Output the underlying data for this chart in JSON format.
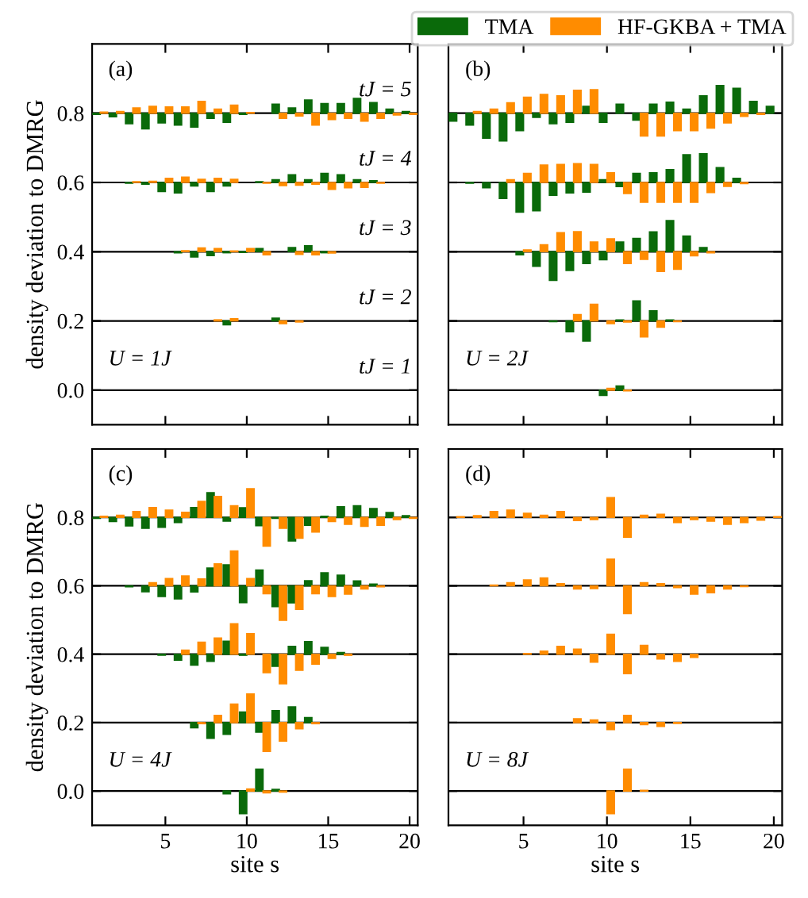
{
  "chart_data": [
    {
      "type": "bar",
      "ylabel": "density deviation to DMRG",
      "legend": "top right",
      "tick_labels": "y",
      "xlim": [
        0.5,
        20.5
      ],
      "xticks": [
        5,
        10,
        15,
        20
      ],
      "ylim": [
        -0.1,
        1.0
      ],
      "yticks": [
        {
          "value": 0.0,
          "label": "0.0"
        },
        0.2,
        0.4,
        0.6,
        0.8
      ],
      "ref_lines": [
        {
          "axis": "y",
          "value": 0.0,
          "color": "#000000"
        },
        {
          "axis": "y",
          "value": 0.2,
          "color": "#000000"
        },
        {
          "axis": "y",
          "value": 0.4,
          "color": "#000000"
        },
        {
          "axis": "y",
          "value": 0.6,
          "color": "#000000"
        },
        {
          "axis": "y",
          "value": 0.8,
          "color": "#000000"
        }
      ],
      "annotations": [
        "(a)",
        "tJ = 5",
        "tJ = 4",
        "tJ = 3",
        "tJ = 2",
        "tJ = 1",
        "U = 1J"
      ],
      "x": [
        1,
        2,
        3,
        4,
        5,
        6,
        7,
        8,
        9,
        10,
        11,
        12,
        13,
        14,
        15,
        16,
        17,
        18,
        19,
        20
      ],
      "series": [
        {
          "name": "TMA",
          "color": "#0a6a0a",
          "base": [
            null,
            null,
            null,
            null,
            null,
            null,
            null,
            null,
            0.2,
            null,
            null,
            0.2,
            null,
            null,
            null,
            null,
            null,
            null,
            null,
            null
          ],
          "values": [
            null,
            null,
            null,
            null,
            null,
            null,
            null,
            null,
            -0.011,
            null,
            null,
            0.008,
            null,
            null,
            null,
            null,
            null,
            null,
            null,
            null
          ]
        },
        {
          "color": "#0a6a0a",
          "base": [
            null,
            null,
            null,
            null,
            null,
            0.4,
            0.4,
            0.4,
            0.4,
            0.4,
            0.4,
            null,
            0.4,
            0.4,
            0.4,
            null,
            null,
            null,
            null,
            null
          ],
          "values": [
            null,
            null,
            null,
            null,
            null,
            -0.003,
            -0.015,
            -0.011,
            -0.003,
            -0.002,
            0.009,
            null,
            0.012,
            0.017,
            -0.003,
            null,
            null,
            null,
            null,
            null
          ]
        },
        {
          "color": "#0a6a0a",
          "base": [
            null,
            null,
            0.6,
            0.6,
            0.6,
            0.6,
            0.6,
            0.6,
            0.6,
            null,
            0.6,
            0.6,
            0.6,
            0.6,
            0.6,
            0.6,
            0.6,
            0.6,
            null,
            null
          ],
          "values": [
            null,
            null,
            -0.002,
            -0.005,
            -0.026,
            -0.03,
            -0.01,
            -0.026,
            -0.01,
            null,
            0.002,
            0.008,
            0.022,
            0.008,
            0.026,
            0.022,
            0.008,
            0.005,
            null,
            null
          ]
        },
        {
          "color": "#0a6a0a",
          "base": [
            0.8,
            0.8,
            0.8,
            0.8,
            0.8,
            0.8,
            0.8,
            0.8,
            0.8,
            0.8,
            null,
            0.8,
            0.8,
            0.8,
            0.8,
            0.8,
            0.8,
            0.8,
            0.8,
            0.8
          ],
          "values": [
            -0.003,
            -0.01,
            -0.03,
            -0.045,
            -0.028,
            -0.034,
            -0.04,
            -0.015,
            -0.026,
            -0.003,
            null,
            0.026,
            0.015,
            0.038,
            0.028,
            0.028,
            0.043,
            0.031,
            0.012,
            0.005
          ]
        },
        {
          "name": "HF-GKBA + TMA",
          "color": "#ff8c00",
          "base": [
            null,
            null,
            null,
            null,
            null,
            null,
            null,
            0.2,
            0.2,
            null,
            null,
            0.2,
            0.2,
            null,
            null,
            null,
            null,
            null,
            null,
            null
          ],
          "values": [
            null,
            null,
            null,
            null,
            null,
            null,
            null,
            0.003,
            0.006,
            null,
            null,
            -0.008,
            -0.003,
            null,
            null,
            null,
            null,
            null,
            null,
            null
          ]
        },
        {
          "color": "#ff8c00",
          "base": [
            null,
            null,
            null,
            null,
            null,
            0.4,
            0.4,
            0.4,
            0.4,
            0.4,
            0.4,
            null,
            0.4,
            0.4,
            0.4,
            null,
            null,
            null,
            null,
            null
          ],
          "values": [
            null,
            null,
            null,
            null,
            null,
            0.003,
            0.011,
            0.009,
            0.002,
            0.009,
            -0.009,
            null,
            -0.008,
            -0.009,
            -0.004,
            null,
            null,
            null,
            null,
            null
          ]
        },
        {
          "color": "#ff8c00",
          "base": [
            null,
            null,
            0.6,
            0.6,
            0.6,
            0.6,
            0.6,
            0.6,
            0.6,
            null,
            0.6,
            0.6,
            0.6,
            0.6,
            0.6,
            0.6,
            0.6,
            0.6,
            null,
            null
          ],
          "values": [
            null,
            null,
            0.002,
            0.003,
            0.012,
            0.015,
            0.009,
            0.012,
            0.009,
            null,
            -0.002,
            -0.009,
            -0.008,
            -0.005,
            -0.02,
            -0.015,
            -0.014,
            -0.002,
            null,
            null
          ]
        },
        {
          "color": "#ff8c00",
          "base": [
            0.8,
            0.8,
            0.8,
            0.8,
            0.8,
            0.8,
            0.8,
            0.8,
            0.8,
            0.8,
            null,
            0.8,
            0.8,
            0.8,
            0.8,
            0.8,
            0.8,
            0.8,
            0.8,
            0.8
          ],
          "values": [
            0.003,
            0.005,
            0.015,
            0.02,
            0.018,
            0.018,
            0.034,
            0.012,
            0.023,
            0.002,
            null,
            -0.015,
            -0.008,
            -0.034,
            -0.018,
            -0.015,
            -0.023,
            -0.015,
            -0.005,
            -0.003
          ]
        }
      ]
    },
    {
      "type": "bar",
      "tick_labels": false,
      "xlim": [
        0.5,
        20.5
      ],
      "xticks": [
        5,
        10,
        15,
        20
      ],
      "ylim": [
        -0.1,
        1.0
      ],
      "yticks": [
        0,
        0.2,
        0.4,
        0.6,
        0.8
      ],
      "ref_lines": [
        {
          "axis": "y",
          "value": 0.0,
          "color": "#000000"
        },
        {
          "axis": "y",
          "value": 0.2,
          "color": "#000000"
        },
        {
          "axis": "y",
          "value": 0.4,
          "color": "#000000"
        },
        {
          "axis": "y",
          "value": 0.6,
          "color": "#000000"
        },
        {
          "axis": "y",
          "value": 0.8,
          "color": "#000000"
        }
      ],
      "annotations": [
        "(b)",
        "U = 2J"
      ],
      "x": [
        1,
        2,
        3,
        4,
        5,
        6,
        7,
        8,
        9,
        10,
        11,
        12,
        13,
        14,
        15,
        16,
        17,
        18,
        19,
        20
      ],
      "series": [
        {
          "name": "TMA",
          "color": "#0a6a0a",
          "base": [
            null,
            null,
            null,
            null,
            null,
            null,
            null,
            null,
            null,
            0,
            0,
            null,
            null,
            null,
            null,
            null,
            null,
            null,
            null,
            null
          ],
          "values": [
            null,
            null,
            null,
            null,
            null,
            null,
            null,
            null,
            null,
            -0.015,
            0.012,
            null,
            null,
            null,
            null,
            null,
            null,
            null,
            null,
            null
          ]
        },
        {
          "color": "#0a6a0a",
          "base": [
            null,
            null,
            null,
            null,
            null,
            null,
            0.2,
            0.2,
            0.2,
            null,
            0.2,
            0.2,
            0.2,
            0.2,
            null,
            null,
            null,
            null,
            null,
            null
          ],
          "values": [
            null,
            null,
            null,
            null,
            null,
            null,
            -0.002,
            -0.031,
            -0.058,
            null,
            0.003,
            0.058,
            0.029,
            0.003,
            null,
            null,
            null,
            null,
            null,
            null
          ]
        },
        {
          "color": "#0a6a0a",
          "base": [
            null,
            null,
            null,
            null,
            0.4,
            0.4,
            0.4,
            0.4,
            0.4,
            0.4,
            0.4,
            0.4,
            0.4,
            0.4,
            0.4,
            0.4,
            null,
            null,
            null,
            null
          ],
          "values": [
            null,
            null,
            null,
            null,
            -0.009,
            -0.042,
            -0.083,
            -0.054,
            -0.034,
            -0.023,
            0.028,
            0.038,
            0.057,
            0.09,
            0.045,
            0.012,
            null,
            null,
            null,
            null
          ]
        },
        {
          "color": "#0a6a0a",
          "base": [
            null,
            0.6,
            0.6,
            0.6,
            0.6,
            0.6,
            0.6,
            0.6,
            0.6,
            0.6,
            0.6,
            0.6,
            0.6,
            0.6,
            0.6,
            0.6,
            0.6,
            0.6,
            null,
            null
          ],
          "values": [
            null,
            -0.002,
            -0.015,
            -0.046,
            -0.086,
            -0.082,
            -0.037,
            -0.03,
            -0.028,
            0.008,
            -0.012,
            0.026,
            0.028,
            0.037,
            0.08,
            0.083,
            0.043,
            0.012,
            null,
            null
          ]
        },
        {
          "color": "#0a6a0a",
          "base": [
            0.8,
            0.8,
            0.8,
            0.8,
            0.8,
            0.8,
            0.8,
            0.8,
            0.8,
            0.8,
            0.8,
            0.8,
            0.8,
            0.8,
            0.8,
            0.8,
            0.8,
            0.8,
            0.8,
            0.8
          ],
          "values": [
            -0.023,
            -0.034,
            -0.072,
            -0.08,
            -0.05,
            -0.012,
            -0.03,
            -0.026,
            0.02,
            -0.026,
            0.026,
            -0.02,
            0.026,
            0.032,
            0.012,
            0.05,
            0.08,
            0.072,
            0.034,
            0.02
          ]
        },
        {
          "name": "HF-GKBA + TMA",
          "color": "#ff8c00",
          "base": [
            null,
            null,
            null,
            null,
            null,
            null,
            null,
            null,
            null,
            0,
            0,
            null,
            null,
            null,
            null,
            null,
            null,
            null,
            null,
            null
          ],
          "values": [
            null,
            null,
            null,
            null,
            null,
            null,
            null,
            null,
            null,
            0.005,
            -0.002,
            null,
            null,
            null,
            null,
            null,
            null,
            null,
            null,
            null
          ]
        },
        {
          "color": "#ff8c00",
          "base": [
            null,
            null,
            null,
            null,
            null,
            null,
            null,
            0.2,
            0.2,
            0.2,
            0.2,
            0.2,
            0.2,
            0.2,
            null,
            null,
            null,
            null,
            null,
            null
          ],
          "values": [
            null,
            null,
            null,
            null,
            null,
            null,
            null,
            0.018,
            0.048,
            -0.008,
            -0.003,
            -0.046,
            -0.018,
            -0.002,
            null,
            null,
            null,
            null,
            null,
            null
          ]
        },
        {
          "color": "#ff8c00",
          "base": [
            null,
            null,
            null,
            null,
            0.4,
            0.4,
            0.4,
            0.4,
            0.4,
            0.4,
            0.4,
            0.4,
            0.4,
            0.4,
            0.4,
            0.4,
            null,
            null,
            null,
            null
          ],
          "values": [
            null,
            null,
            null,
            null,
            0.005,
            0.02,
            0.055,
            0.058,
            0.028,
            0.037,
            -0.034,
            -0.022,
            -0.057,
            -0.051,
            -0.012,
            -0.003,
            null,
            null,
            null,
            null
          ]
        },
        {
          "color": "#ff8c00",
          "base": [
            null,
            null,
            null,
            0.6,
            0.6,
            0.6,
            0.6,
            0.6,
            0.6,
            0.6,
            0.6,
            0.6,
            0.6,
            0.6,
            0.6,
            0.6,
            0.6,
            0.6,
            null,
            null
          ],
          "values": [
            null,
            null,
            null,
            0.008,
            0.026,
            0.05,
            0.052,
            0.054,
            0.052,
            0.028,
            -0.032,
            -0.057,
            -0.057,
            -0.057,
            -0.057,
            -0.029,
            -0.011,
            -0.003,
            null,
            null
          ]
        },
        {
          "color": "#ff8c00",
          "base": [
            null,
            0.8,
            0.8,
            0.8,
            0.8,
            0.8,
            0.8,
            0.8,
            0.8,
            null,
            null,
            0.8,
            0.8,
            0.8,
            0.8,
            0.8,
            0.8,
            0.8,
            0.8,
            null
          ],
          "values": [
            null,
            0.005,
            0.012,
            0.03,
            0.046,
            0.054,
            0.05,
            0.066,
            0.068,
            null,
            null,
            -0.066,
            -0.066,
            -0.05,
            -0.05,
            -0.043,
            -0.028,
            -0.009,
            -0.003,
            null
          ]
        }
      ]
    },
    {
      "type": "bar",
      "xlabel": "site s",
      "ylabel": "density deviation to DMRG",
      "xlim": [
        0.5,
        20.5
      ],
      "xticks": [
        5,
        10,
        15,
        20
      ],
      "ylim": [
        -0.1,
        1.0
      ],
      "yticks": [
        {
          "value": 0.0,
          "label": "0.0"
        },
        0.2,
        0.4,
        0.6,
        0.8
      ],
      "ref_lines": [
        {
          "axis": "y",
          "value": 0.0,
          "color": "#000000"
        },
        {
          "axis": "y",
          "value": 0.2,
          "color": "#000000"
        },
        {
          "axis": "y",
          "value": 0.4,
          "color": "#000000"
        },
        {
          "axis": "y",
          "value": 0.6,
          "color": "#000000"
        },
        {
          "axis": "y",
          "value": 0.8,
          "color": "#000000"
        }
      ],
      "annotations": [
        "(c)",
        "U = 4J"
      ],
      "x": [
        1,
        2,
        3,
        4,
        5,
        6,
        7,
        8,
        9,
        10,
        11,
        12,
        13,
        14,
        15,
        16,
        17,
        18,
        19,
        20
      ],
      "series": [
        {
          "name": "TMA",
          "color": "#0a6a0a",
          "base": [
            null,
            null,
            null,
            null,
            null,
            null,
            null,
            null,
            0,
            0,
            0,
            0,
            null,
            null,
            null,
            null,
            null,
            null,
            null,
            null
          ],
          "values": [
            null,
            null,
            null,
            null,
            null,
            null,
            null,
            null,
            -0.008,
            -0.066,
            0.064,
            0.005,
            null,
            null,
            null,
            null,
            null,
            null,
            null,
            null
          ]
        },
        {
          "color": "#0a6a0a",
          "base": [
            null,
            null,
            null,
            null,
            null,
            null,
            0.2,
            0.2,
            0.2,
            0.2,
            0.2,
            0.2,
            0.2,
            0.2,
            null,
            null,
            null,
            null,
            null,
            null
          ],
          "values": [
            null,
            null,
            null,
            null,
            null,
            null,
            -0.015,
            -0.046,
            -0.034,
            0.031,
            -0.028,
            0.035,
            0.046,
            0.015,
            null,
            null,
            null,
            null,
            null,
            null
          ]
        },
        {
          "color": "#0a6a0a",
          "base": [
            null,
            null,
            null,
            null,
            0.4,
            0.4,
            0.4,
            0.4,
            0.4,
            0.4,
            null,
            0.4,
            0.4,
            0.4,
            0.4,
            0.4,
            null,
            null,
            null,
            null
          ],
          "values": [
            null,
            null,
            null,
            null,
            -0.003,
            -0.017,
            -0.032,
            -0.021,
            0.038,
            -0.003,
            null,
            -0.035,
            0.023,
            0.037,
            0.02,
            0.005,
            null,
            null,
            null,
            null
          ]
        },
        {
          "color": "#0a6a0a",
          "base": [
            null,
            null,
            0.6,
            0.6,
            0.6,
            0.6,
            0.6,
            0.6,
            0.6,
            0.6,
            0.6,
            0.6,
            0.6,
            0.6,
            0.6,
            0.6,
            0.6,
            0.6,
            null,
            null
          ],
          "values": [
            null,
            null,
            -0.003,
            -0.017,
            -0.031,
            -0.038,
            -0.018,
            0.052,
            0.061,
            -0.049,
            0.046,
            -0.061,
            -0.05,
            0.015,
            0.038,
            0.031,
            0.014,
            0.005,
            null,
            null
          ]
        },
        {
          "color": "#0a6a0a",
          "base": [
            0.8,
            0.8,
            0.8,
            0.8,
            0.8,
            0.8,
            0.8,
            0.8,
            0.8,
            0.8,
            0.8,
            0.8,
            0.8,
            0.8,
            0.8,
            0.8,
            0.8,
            0.8,
            0.8,
            0.8
          ],
          "values": [
            -0.003,
            -0.012,
            -0.025,
            -0.032,
            -0.029,
            -0.015,
            0.029,
            0.072,
            -0.011,
            0.028,
            -0.024,
            -0.003,
            -0.069,
            -0.023,
            0.003,
            0.031,
            0.034,
            0.026,
            0.014,
            0.005
          ]
        },
        {
          "name": "HF-GKBA + TMA",
          "color": "#ff8c00",
          "base": [
            null,
            null,
            null,
            null,
            null,
            null,
            null,
            null,
            null,
            0,
            0,
            0,
            null,
            null,
            null,
            null,
            null,
            null,
            null,
            null
          ],
          "values": [
            null,
            null,
            null,
            null,
            null,
            null,
            null,
            null,
            null,
            0.006,
            -0.005,
            -0.003,
            null,
            null,
            null,
            null,
            null,
            null,
            null,
            null
          ]
        },
        {
          "color": "#ff8c00",
          "base": [
            null,
            null,
            null,
            null,
            null,
            null,
            0.2,
            0.2,
            0.2,
            0.2,
            0.2,
            0.2,
            0.2,
            0.2,
            null,
            null,
            null,
            null,
            null,
            null
          ],
          "values": [
            null,
            null,
            null,
            null,
            null,
            null,
            -0.003,
            0.021,
            0.054,
            0.084,
            -0.084,
            -0.054,
            -0.018,
            -0.003,
            null,
            null,
            null,
            null,
            null,
            null
          ]
        },
        {
          "color": "#ff8c00",
          "base": [
            null,
            null,
            null,
            null,
            null,
            0.4,
            0.4,
            0.4,
            0.4,
            0.4,
            0.4,
            0.4,
            0.4,
            0.4,
            0.4,
            0.4,
            null,
            null,
            null,
            null
          ],
          "values": [
            null,
            null,
            null,
            null,
            null,
            0.012,
            0.035,
            0.047,
            0.089,
            0.06,
            -0.054,
            -0.086,
            -0.047,
            -0.029,
            -0.012,
            -0.003,
            null,
            null,
            null,
            null
          ]
        },
        {
          "color": "#ff8c00",
          "base": [
            null,
            null,
            null,
            0.6,
            0.6,
            0.6,
            0.6,
            0.6,
            0.6,
            0.6,
            0.6,
            0.6,
            0.6,
            0.6,
            0.6,
            0.6,
            0.6,
            0.6,
            null,
            null
          ],
          "values": [
            null,
            null,
            null,
            0.009,
            0.021,
            0.029,
            0.02,
            0.064,
            0.102,
            0.021,
            -0.023,
            -0.101,
            -0.069,
            -0.023,
            -0.031,
            -0.024,
            -0.009,
            -0.003,
            null,
            null
          ]
        },
        {
          "color": "#ff8c00",
          "base": [
            0.8,
            0.8,
            0.8,
            0.8,
            0.8,
            0.8,
            0.8,
            0.8,
            0.8,
            0.8,
            0.8,
            0.8,
            0.8,
            0.8,
            0.8,
            0.8,
            0.8,
            0.8,
            0.8,
            0.8
          ],
          "values": [
            0.003,
            0.006,
            0.017,
            0.029,
            0.021,
            0.015,
            0.047,
            0.061,
            0.034,
            0.084,
            -0.084,
            -0.032,
            -0.061,
            -0.043,
            -0.012,
            -0.02,
            -0.026,
            -0.023,
            -0.006,
            -0.003
          ]
        }
      ]
    },
    {
      "type": "bar",
      "xlabel": "site s",
      "tick_labels": "x",
      "xlim": [
        0.5,
        20.5
      ],
      "xticks": [
        5,
        10,
        15,
        20
      ],
      "ylim": [
        -0.1,
        1.0
      ],
      "yticks": [
        0,
        0.2,
        0.4,
        0.6,
        0.8
      ],
      "ref_lines": [
        {
          "axis": "y",
          "value": 0.0,
          "color": "#000000"
        },
        {
          "axis": "y",
          "value": 0.2,
          "color": "#000000"
        },
        {
          "axis": "y",
          "value": 0.4,
          "color": "#000000"
        },
        {
          "axis": "y",
          "value": 0.6,
          "color": "#000000"
        },
        {
          "axis": "y",
          "value": 0.8,
          "color": "#000000"
        }
      ],
      "annotations": [
        "(d)",
        "U = 8J"
      ],
      "x": [
        1,
        2,
        3,
        4,
        5,
        6,
        7,
        8,
        9,
        10,
        11,
        12,
        13,
        14,
        15,
        16,
        17,
        18,
        19,
        20
      ],
      "series": [
        {
          "name": "HF-GKBA + TMA",
          "color": "#ff8c00",
          "base": [
            null,
            null,
            null,
            null,
            null,
            null,
            null,
            null,
            null,
            0,
            0,
            0,
            null,
            null,
            null,
            null,
            null,
            null,
            null,
            null
          ],
          "values": [
            null,
            null,
            null,
            null,
            null,
            null,
            null,
            null,
            null,
            -0.066,
            0.064,
            0.002,
            null,
            null,
            null,
            null,
            null,
            null,
            null,
            null
          ]
        },
        {
          "color": "#ff8c00",
          "base": [
            null,
            null,
            null,
            null,
            null,
            null,
            null,
            0.2,
            0.2,
            0.2,
            0.2,
            0.2,
            0.2,
            0.2,
            null,
            null,
            null,
            null,
            null,
            null
          ],
          "values": [
            null,
            null,
            null,
            null,
            null,
            null,
            null,
            0.011,
            0.008,
            -0.02,
            0.021,
            -0.006,
            -0.011,
            -0.002,
            null,
            null,
            null,
            null,
            null,
            null
          ]
        },
        {
          "color": "#ff8c00",
          "base": [
            null,
            null,
            null,
            null,
            0.4,
            0.4,
            0.4,
            0.4,
            0.4,
            0.4,
            0.4,
            0.4,
            0.4,
            0.4,
            0.4,
            null,
            null,
            null,
            null,
            null
          ],
          "values": [
            null,
            null,
            null,
            null,
            0.002,
            0.009,
            0.023,
            0.015,
            -0.023,
            0.058,
            -0.057,
            0.026,
            -0.014,
            -0.021,
            -0.009,
            null,
            null,
            null,
            null,
            null
          ]
        },
        {
          "color": "#ff8c00",
          "base": [
            null,
            null,
            0.6,
            0.6,
            0.6,
            0.6,
            0.6,
            0.6,
            0.6,
            0.6,
            0.6,
            0.6,
            0.6,
            0.6,
            0.6,
            0.6,
            0.6,
            0.6,
            null,
            null
          ],
          "values": [
            null,
            null,
            0.002,
            0.009,
            0.017,
            0.023,
            0.006,
            -0.009,
            -0.008,
            0.078,
            -0.081,
            0.009,
            0.006,
            -0.005,
            -0.024,
            -0.02,
            -0.009,
            -0.002,
            null,
            null
          ]
        },
        {
          "color": "#ff8c00",
          "base": [
            0.8,
            0.8,
            0.8,
            0.8,
            0.8,
            0.8,
            0.8,
            0.8,
            0.8,
            0.8,
            0.8,
            0.8,
            0.8,
            0.8,
            0.8,
            0.8,
            0.8,
            0.8,
            0.8,
            0.8
          ],
          "values": [
            0.002,
            0.005,
            0.017,
            0.021,
            0.012,
            0.006,
            0.017,
            -0.009,
            -0.006,
            0.058,
            -0.058,
            0.006,
            0.009,
            -0.015,
            -0.006,
            -0.011,
            -0.02,
            -0.015,
            -0.008,
            0.002
          ]
        }
      ]
    }
  ]
}
